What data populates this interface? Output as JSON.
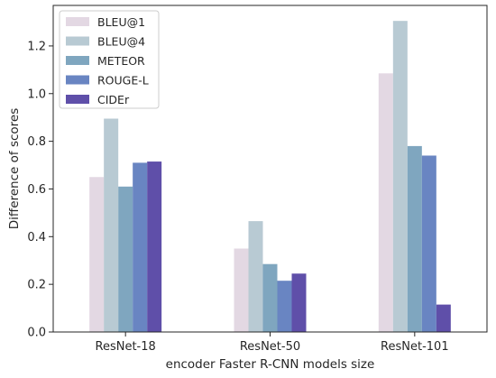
{
  "chart_data": {
    "type": "bar",
    "categories": [
      "ResNet-18",
      "ResNet-50",
      "ResNet-101"
    ],
    "series": [
      {
        "name": "BLEU@1",
        "color": "#e3d8e3",
        "values": [
          0.65,
          0.35,
          1.085
        ]
      },
      {
        "name": "BLEU@4",
        "color": "#b8cad3",
        "values": [
          0.895,
          0.465,
          1.305
        ]
      },
      {
        "name": "METEOR",
        "color": "#7fa6bf",
        "values": [
          0.61,
          0.285,
          0.78
        ]
      },
      {
        "name": "ROUGE-L",
        "color": "#6985c2",
        "values": [
          0.71,
          0.215,
          0.74
        ]
      },
      {
        "name": "CIDEr",
        "color": "#5f4fa9",
        "values": [
          0.715,
          0.245,
          0.115
        ]
      }
    ],
    "xlabel": "encoder Faster R-CNN models size",
    "ylabel": "Difference of scores",
    "ylim": [
      0,
      1.37
    ],
    "yticks": [
      0.0,
      0.2,
      0.4,
      0.6,
      0.8,
      1.0,
      1.2
    ],
    "ytick_labels": [
      "0.0",
      "0.2",
      "0.4",
      "0.6",
      "0.8",
      "1.0",
      "1.2"
    ],
    "grid": false,
    "legend_position": "top-left"
  }
}
